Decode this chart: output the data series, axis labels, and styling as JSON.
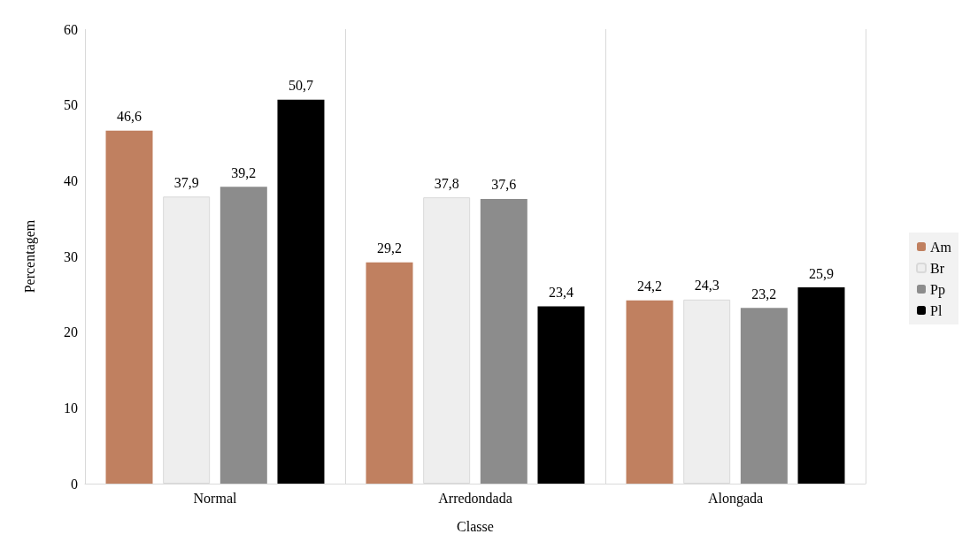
{
  "chart_data": {
    "type": "bar",
    "xlabel": "Classe",
    "ylabel": "Percentagem",
    "categories": [
      "Normal",
      "Arredondada",
      "Alongada"
    ],
    "series": [
      {
        "name": "Am",
        "color": "#c08060",
        "values": [
          46.6,
          29.2,
          24.2
        ],
        "value_labels": [
          "46,6",
          "29,2",
          "24,2"
        ]
      },
      {
        "name": "Br",
        "color": "#eeeeee",
        "values": [
          37.9,
          37.8,
          24.3
        ],
        "value_labels": [
          "37,9",
          "37,8",
          "24,3"
        ]
      },
      {
        "name": "Pp",
        "color": "#8c8c8c",
        "values": [
          39.2,
          37.6,
          23.2
        ],
        "value_labels": [
          "39,2",
          "37,6",
          "23,2"
        ]
      },
      {
        "name": "Pl",
        "color": "#000000",
        "values": [
          50.7,
          23.4,
          25.9
        ],
        "value_labels": [
          "50,7",
          "23,4",
          "25,9"
        ]
      }
    ],
    "ylim": [
      0,
      60
    ],
    "yticks": [
      0,
      10,
      20,
      30,
      40,
      50,
      60
    ],
    "grid": "x",
    "legend": "right"
  }
}
